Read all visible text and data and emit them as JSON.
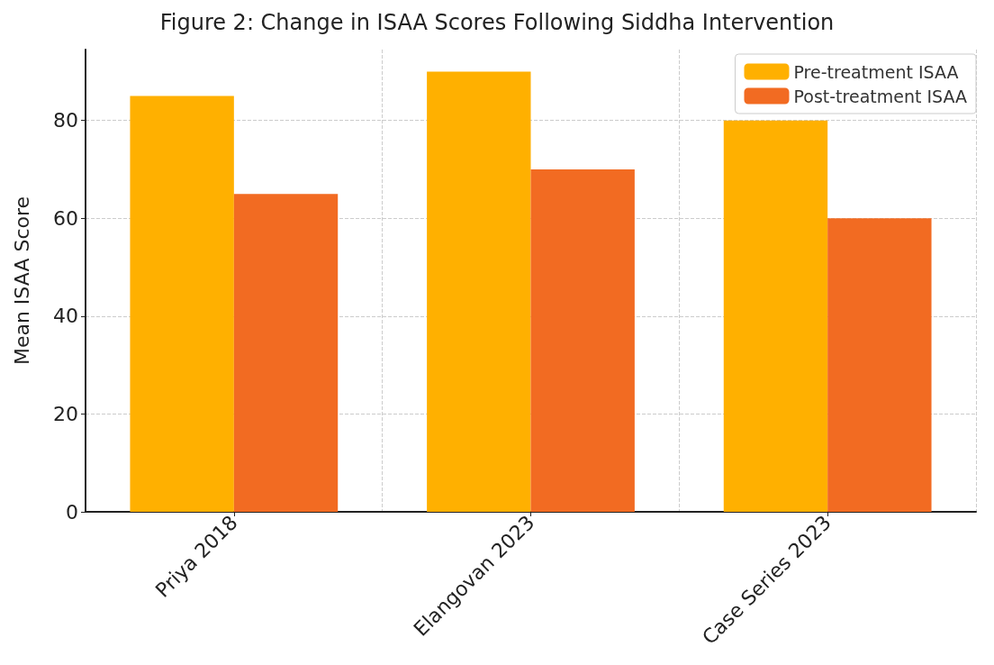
{
  "chart_data": {
    "type": "bar",
    "title": "Figure 2: Change in ISAA Scores Following Siddha Intervention",
    "ylabel": "Mean ISAA Score",
    "categories": [
      "Priya 2018",
      "Elangovan 2023",
      "Case Series 2023"
    ],
    "series": [
      {
        "name": "Pre-treatment ISAA",
        "color": "#ffb000",
        "values": [
          85,
          90,
          80
        ]
      },
      {
        "name": "Post-treatment ISAA",
        "color": "#f26b22",
        "values": [
          65,
          70,
          60
        ]
      }
    ],
    "ylim": [
      0,
      94.5
    ],
    "yticks": [
      0,
      20,
      40,
      60,
      80
    ],
    "grid": true,
    "legend": "top right"
  }
}
